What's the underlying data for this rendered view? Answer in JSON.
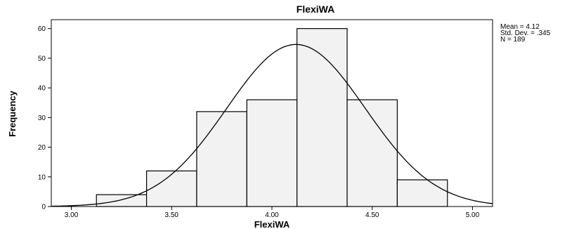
{
  "chart_data": {
    "type": "bar",
    "subtype": "histogram",
    "title": "FlexiWA",
    "xlabel": "FlexiWA",
    "ylabel": "Frequency",
    "xlim": [
      2.9,
      5.1
    ],
    "ylim": [
      0,
      63
    ],
    "x_ticks": [
      "3.00",
      "3.50",
      "4.00",
      "4.50",
      "5.00"
    ],
    "x_tick_values": [
      3.0,
      3.5,
      4.0,
      4.5,
      5.0
    ],
    "y_ticks": [
      "0",
      "10",
      "20",
      "30",
      "40",
      "50",
      "60"
    ],
    "y_tick_values": [
      0,
      10,
      20,
      30,
      40,
      50,
      60
    ],
    "bins": [
      {
        "start": 3.125,
        "end": 3.375,
        "value": 4
      },
      {
        "start": 3.375,
        "end": 3.625,
        "value": 12
      },
      {
        "start": 3.625,
        "end": 3.875,
        "value": 32
      },
      {
        "start": 3.875,
        "end": 4.125,
        "value": 36
      },
      {
        "start": 4.125,
        "end": 4.375,
        "value": 60
      },
      {
        "start": 4.375,
        "end": 4.625,
        "value": 36
      },
      {
        "start": 4.625,
        "end": 4.875,
        "value": 9
      }
    ],
    "normal_curve": {
      "mean": 4.12,
      "sd": 0.345,
      "n": 189,
      "bin_width": 0.25
    },
    "stats": {
      "mean": "Mean = 4.12",
      "sd": "Std. Dev. = .345",
      "n": "N = 189"
    },
    "colors": {
      "bar_fill": "#f2f2f2",
      "bar_stroke": "#000000",
      "curve": "#000000",
      "axis": "#000000"
    },
    "grid": false
  }
}
